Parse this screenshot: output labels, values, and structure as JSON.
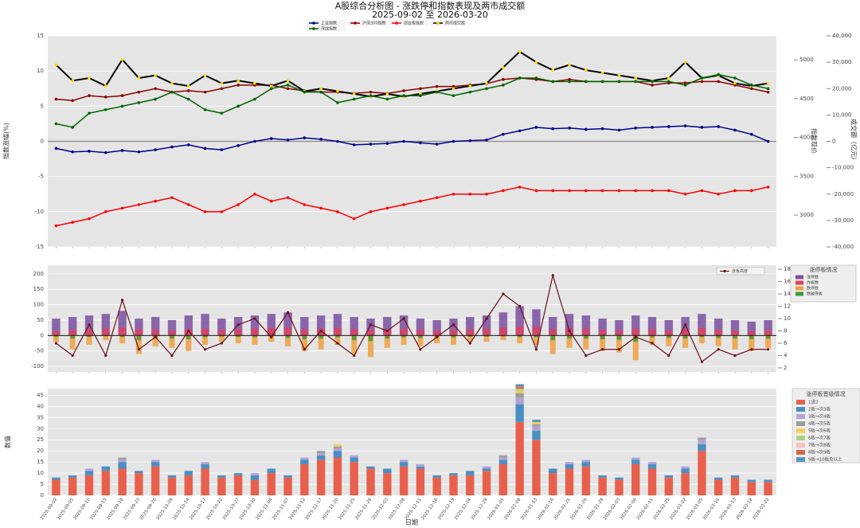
{
  "chart_data": [
    {
      "type": "line",
      "title": "A股综合分析图 - 涨跌停和指数表现及两市成交额",
      "subtitle": "2025-09-02 至 2026-03-20",
      "ylabel": "指数涨幅(%)",
      "ylim": [
        -15,
        15
      ],
      "yticks": [
        -15,
        -10,
        -5,
        0,
        5,
        10,
        15
      ],
      "y2label": "成交额（亿元）",
      "y2lim": [
        -40000,
        40000
      ],
      "y2ticks": [
        {
          "value": -40000,
          "label": "-40,000"
        },
        {
          "value": -30000,
          "label": "-30,000"
        },
        {
          "value": -20000,
          "label": "-20,000"
        },
        {
          "value": -10000,
          "label": "-10,000"
        },
        0,
        {
          "value": 10000,
          "label": "10,000"
        },
        {
          "value": 20000,
          "label": "20,000"
        },
        {
          "value": 30000,
          "label": "30,000"
        },
        {
          "value": 40000,
          "label": "40,000"
        }
      ],
      "y3label": "指数现价",
      "y3lim": [
        2590,
        5310
      ],
      "y3ticks": [
        3000,
        3500,
        4000,
        4500,
        5000
      ],
      "grid": true,
      "series": [
        {
          "name": "上证指数",
          "color": "#00008b",
          "axis": "y",
          "values": [
            -1,
            -1.5,
            -1.4,
            -1.6,
            -1.3,
            -1.5,
            -1.2,
            -0.8,
            -0.5,
            -1,
            -1.2,
            -0.6,
            0,
            0.4,
            0.2,
            0.5,
            0.3,
            0,
            -0.5,
            -0.4,
            -0.3,
            0,
            -0.2,
            -0.4,
            0,
            0.1,
            0.2,
            1,
            1.5,
            2,
            1.8,
            1.9,
            1.7,
            1.8,
            1.6,
            1.9,
            2,
            2.1,
            2.2,
            2,
            2.1,
            1.6,
            1,
            0
          ]
        },
        {
          "name": "沪深300指数",
          "color": "#8b0000",
          "axis": "y",
          "values": [
            6,
            5.8,
            6.5,
            6.3,
            6.5,
            7,
            7.5,
            7,
            7.2,
            7,
            7.5,
            8,
            8,
            8,
            7.5,
            7.2,
            7,
            7,
            6.8,
            7,
            6.8,
            7.2,
            7.5,
            7.8,
            7.8,
            8,
            8.2,
            8.8,
            9,
            8.8,
            8.5,
            8.8,
            8.5,
            8.5,
            8.5,
            8.5,
            8,
            8.3,
            8.3,
            8.5,
            8.5,
            8,
            7.5,
            7
          ]
        },
        {
          "name": "创业板指数",
          "color": "#ff0000",
          "axis": "y",
          "values": [
            -12,
            -11.5,
            -11,
            -10,
            -9.5,
            -9,
            -8.5,
            -8,
            -9,
            -10,
            -10,
            -9,
            -7.5,
            -8.5,
            -8,
            -9,
            -9.5,
            -10,
            -11,
            -10,
            -9.5,
            -9,
            -8.5,
            -8,
            -7.5,
            -7.5,
            -7.5,
            -7,
            -6.5,
            -7,
            -7,
            -7,
            -7,
            -7,
            -7,
            -7,
            -7,
            -7,
            -7.5,
            -7,
            -7.5,
            -7,
            -7,
            -6.5
          ]
        },
        {
          "name": "两市成交额",
          "color": "#000000",
          "marker": "#ffd700",
          "axis": "y2",
          "values": [
            29000,
            23000,
            24000,
            21000,
            31000,
            24000,
            25000,
            22000,
            21000,
            25000,
            22000,
            23000,
            22000,
            21000,
            23000,
            19000,
            20000,
            19000,
            18000,
            17000,
            18000,
            17000,
            18000,
            19000,
            20000,
            21000,
            22000,
            28000,
            34000,
            30000,
            27000,
            29000,
            27000,
            26000,
            25000,
            24000,
            23000,
            24000,
            30000,
            24000,
            25000,
            22000,
            21000,
            22000
          ]
        },
        {
          "name": "深成指数",
          "color": "#006400",
          "axis": "y",
          "values": [
            2.5,
            2,
            4,
            4.5,
            5,
            5.5,
            6,
            7,
            6,
            4.5,
            4,
            5,
            6,
            7.5,
            8,
            7,
            7,
            5.5,
            6,
            6.5,
            6,
            6.5,
            6.5,
            7,
            6.5,
            7,
            7.5,
            8,
            9,
            9,
            8.5,
            8.5,
            8.5,
            8.5,
            8.5,
            8.5,
            8.5,
            8.5,
            8,
            9,
            9.5,
            9,
            8,
            7.5
          ]
        }
      ]
    },
    {
      "type": "combo",
      "legend_title": "涨停板情况",
      "ylim": [
        -118,
        228
      ],
      "yticks": [
        -100,
        -50,
        0,
        50,
        100,
        150,
        200
      ],
      "y2lim": [
        1.35,
        18.65
      ],
      "y2ticks": [
        2,
        4,
        6,
        8,
        10,
        12,
        14,
        16,
        18
      ],
      "grid": true,
      "series": [
        {
          "name": "涨停数",
          "color": "#7b4fa0",
          "kind": "bar",
          "values": [
            55,
            60,
            65,
            70,
            80,
            55,
            60,
            50,
            65,
            70,
            55,
            60,
            65,
            70,
            75,
            60,
            65,
            70,
            60,
            55,
            60,
            65,
            55,
            50,
            55,
            60,
            65,
            75,
            95,
            85,
            60,
            70,
            65,
            55,
            50,
            65,
            60,
            50,
            60,
            70,
            55,
            50,
            45,
            50
          ]
        },
        {
          "name": "炸板数",
          "color": "#e0405a",
          "kind": "bar",
          "values": [
            15,
            18,
            20,
            22,
            25,
            20,
            18,
            15,
            20,
            22,
            18,
            20,
            22,
            24,
            25,
            20,
            22,
            24,
            20,
            18,
            20,
            22,
            18,
            15,
            18,
            20,
            22,
            25,
            30,
            28,
            20,
            22,
            22,
            18,
            16,
            22,
            20,
            16,
            20,
            24,
            18,
            16,
            14,
            16
          ]
        },
        {
          "name": "跌停数",
          "color": "#f0a040",
          "kind": "bar",
          "values": [
            -20,
            -45,
            -30,
            -15,
            -25,
            -60,
            -35,
            -40,
            -50,
            -30,
            -20,
            -25,
            -30,
            -20,
            -35,
            -50,
            -45,
            -30,
            -60,
            -70,
            -40,
            -30,
            -35,
            -25,
            -30,
            -20,
            -20,
            -15,
            -25,
            -30,
            -60,
            -40,
            -45,
            -50,
            -55,
            -80,
            -30,
            -35,
            -40,
            -25,
            -35,
            -45,
            -50,
            -40
          ]
        },
        {
          "name": "跌破停板",
          "color": "#3a9a3a",
          "kind": "bar",
          "values": [
            -5,
            -10,
            -5,
            -3,
            -5,
            -15,
            -8,
            -10,
            -12,
            -6,
            -4,
            -5,
            -6,
            -4,
            -8,
            -12,
            -10,
            -6,
            -15,
            -18,
            -10,
            -6,
            -8,
            -5,
            -6,
            -4,
            -4,
            -3,
            -5,
            -6,
            -15,
            -10,
            -10,
            -12,
            -14,
            -20,
            -6,
            -8,
            -10,
            -5,
            -8,
            -10,
            -12,
            -10
          ]
        },
        {
          "name": "连板高度",
          "color": "#6b0f1a",
          "kind": "line",
          "axis": "y2",
          "values": [
            6,
            4,
            9,
            4,
            13,
            5,
            7,
            4,
            8,
            5,
            6,
            9,
            10,
            7,
            11,
            5,
            8,
            6,
            4,
            9,
            8,
            10,
            5,
            7,
            9,
            6,
            10,
            14,
            12,
            5,
            17,
            8,
            4,
            5,
            5,
            7,
            6,
            4,
            9,
            3,
            5,
            4,
            5,
            5
          ]
        }
      ]
    },
    {
      "type": "stacked_bar",
      "xlabel": "日期",
      "ylabel": "数值",
      "legend_title": "涨停板晋级情况",
      "ylim": [
        0,
        48
      ],
      "yticks": [
        0,
        5,
        10,
        15,
        20,
        25,
        30,
        35,
        40,
        45
      ],
      "grid": true,
      "categories": [
        "2025-09-02",
        "2025-09-05",
        "2025-09-10",
        "2025-09-15",
        "2025-09-18",
        "2025-09-23",
        "2025-09-26",
        "2025-10-09",
        "2025-10-14",
        "2025-10-17",
        "2025-10-22",
        "2025-10-27",
        "2025-10-30",
        "2025-11-04",
        "2025-11-07",
        "2025-11-12",
        "2025-11-17",
        "2025-11-20",
        "2025-11-25",
        "2025-11-28",
        "2025-12-03",
        "2025-12-08",
        "2025-12-11",
        "2025-12-16",
        "2025-12-19",
        "2025-12-24",
        "2025-12-29",
        "2026-01-05",
        "2026-01-08",
        "2026-01-13",
        "2026-01-16",
        "2026-01-21",
        "2026-01-26",
        "2026-01-29",
        "2026-02-03",
        "2026-02-06",
        "2026-02-11",
        "2026-02-25",
        "2026-03-02",
        "2026-03-05",
        "2026-03-10",
        "2026-03-13",
        "2026-03-18",
        "2026-03-20"
      ],
      "series": [
        {
          "name": "1进2",
          "color": "#e8604c",
          "values": [
            7,
            8,
            9,
            11,
            12,
            10,
            13,
            8,
            9,
            12,
            8,
            9,
            7,
            10,
            8,
            14,
            16,
            17,
            15,
            12,
            10,
            13,
            12,
            8,
            9,
            9,
            11,
            14,
            33,
            25,
            10,
            12,
            13,
            8,
            7,
            14,
            12,
            8,
            10,
            20,
            7,
            8,
            6,
            6
          ]
        },
        {
          "name": "2板→次3板",
          "color": "#4a8fc4",
          "values": [
            1,
            1,
            2,
            2,
            3,
            1,
            2,
            1,
            2,
            2,
            1,
            1,
            2,
            2,
            1,
            2,
            2,
            3,
            2,
            1,
            2,
            2,
            1,
            1,
            1,
            2,
            1,
            2,
            8,
            4,
            2,
            2,
            2,
            1,
            1,
            2,
            2,
            1,
            2,
            3,
            1,
            1,
            1,
            1
          ]
        },
        {
          "name": "3板→次4板",
          "color": "#b3a2d6",
          "values": [
            0,
            0,
            1,
            0,
            1,
            0,
            1,
            0,
            0,
            1,
            0,
            0,
            1,
            0,
            0,
            1,
            1,
            1,
            1,
            0,
            0,
            1,
            1,
            0,
            0,
            0,
            1,
            1,
            3,
            2,
            0,
            1,
            1,
            0,
            0,
            1,
            1,
            0,
            1,
            2,
            0,
            0,
            0,
            0
          ]
        },
        {
          "name": "4板→次5板",
          "color": "#9e9e9e",
          "values": [
            0,
            0,
            0,
            0,
            1,
            0,
            0,
            0,
            0,
            0,
            0,
            0,
            0,
            0,
            0,
            0,
            1,
            1,
            0,
            0,
            0,
            0,
            0,
            0,
            0,
            0,
            0,
            1,
            2,
            1,
            0,
            0,
            0,
            0,
            0,
            0,
            0,
            0,
            0,
            1,
            0,
            0,
            0,
            0
          ]
        },
        {
          "name": "5板→次6板",
          "color": "#f2d15f",
          "values": [
            0,
            0,
            0,
            0,
            0,
            0,
            0,
            0,
            0,
            0,
            0,
            0,
            0,
            0,
            0,
            0,
            0,
            1,
            0,
            0,
            0,
            0,
            0,
            0,
            0,
            0,
            0,
            0,
            1,
            1,
            0,
            0,
            0,
            0,
            0,
            0,
            0,
            0,
            0,
            0,
            0,
            0,
            0,
            0
          ]
        },
        {
          "name": "6板→次7板",
          "color": "#aed27e",
          "values": [
            0,
            0,
            0,
            0,
            0,
            0,
            0,
            0,
            0,
            0,
            0,
            0,
            0,
            0,
            0,
            0,
            0,
            0,
            0,
            0,
            0,
            0,
            0,
            0,
            0,
            0,
            0,
            0,
            1,
            0,
            0,
            0,
            0,
            0,
            0,
            0,
            0,
            0,
            0,
            0,
            0,
            0,
            0,
            0
          ]
        },
        {
          "name": "7板→次8板",
          "color": "#f4c2c2",
          "values": [
            0,
            0,
            0,
            0,
            0,
            0,
            0,
            0,
            0,
            0,
            0,
            0,
            0,
            0,
            0,
            0,
            0,
            0,
            0,
            0,
            0,
            0,
            0,
            0,
            0,
            0,
            0,
            0,
            0,
            0,
            0,
            0,
            0,
            0,
            0,
            0,
            0,
            0,
            0,
            0,
            0,
            0,
            0,
            0
          ]
        },
        {
          "name": "8板→次9板",
          "color": "#d9674e",
          "values": [
            0,
            0,
            0,
            0,
            0,
            0,
            0,
            0,
            0,
            0,
            0,
            0,
            0,
            0,
            0,
            0,
            0,
            0,
            0,
            0,
            0,
            0,
            0,
            0,
            0,
            0,
            0,
            0,
            1,
            0,
            0,
            0,
            0,
            0,
            0,
            0,
            0,
            0,
            0,
            0,
            0,
            0,
            0,
            0
          ]
        },
        {
          "name": "9板→10板及以上",
          "color": "#5a93c2",
          "values": [
            0,
            0,
            0,
            0,
            0,
            0,
            0,
            0,
            0,
            0,
            0,
            0,
            0,
            0,
            0,
            0,
            0,
            0,
            0,
            0,
            0,
            0,
            0,
            0,
            0,
            0,
            0,
            0,
            1,
            1,
            0,
            0,
            0,
            0,
            0,
            0,
            0,
            0,
            0,
            0,
            0,
            0,
            0,
            0
          ]
        }
      ]
    }
  ]
}
